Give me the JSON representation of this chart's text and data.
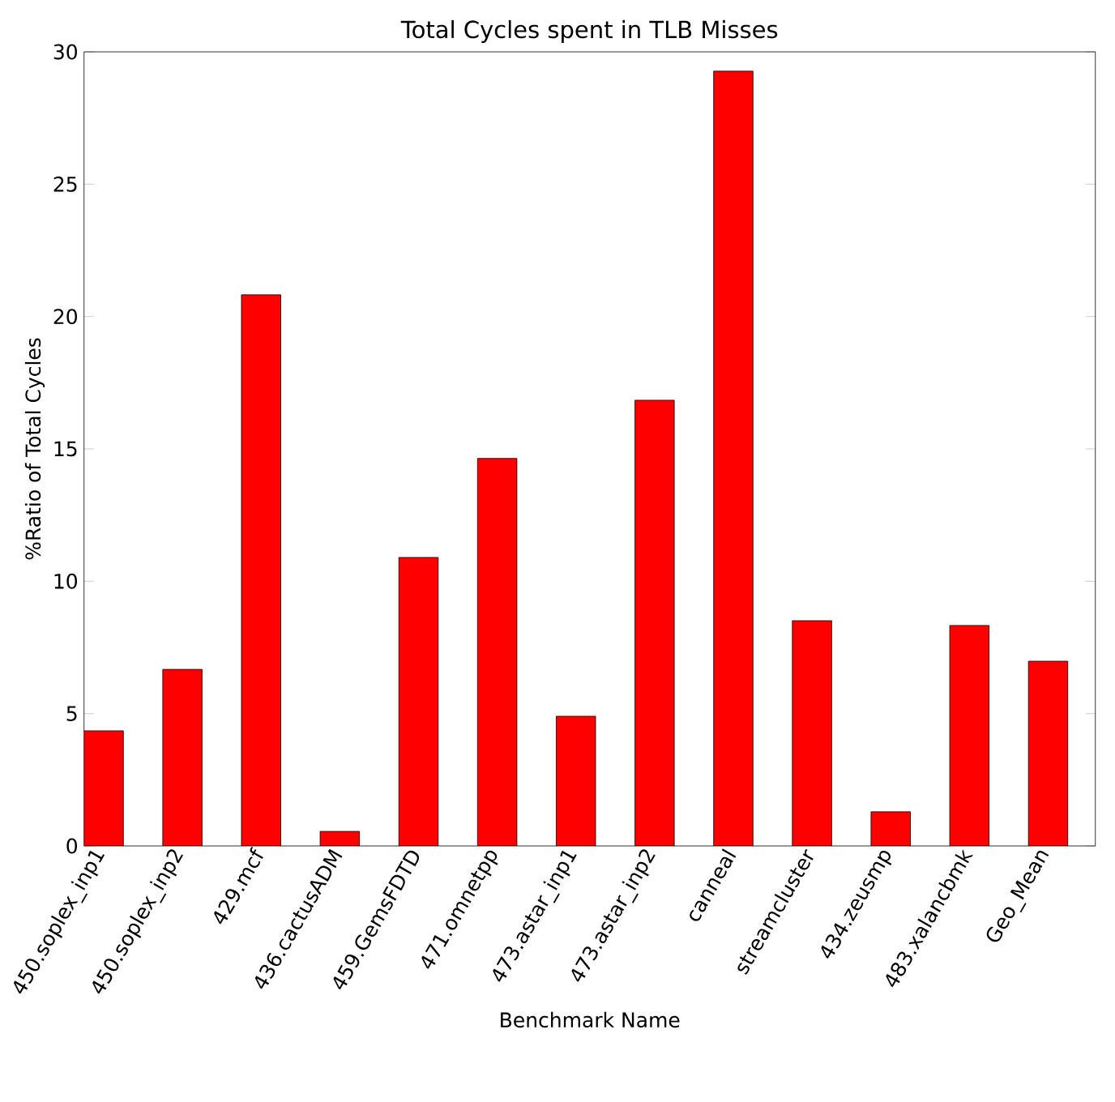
{
  "chart_data": {
    "type": "bar",
    "title": "Total Cycles spent in TLB Misses",
    "xlabel": "Benchmark Name",
    "ylabel": "%Ratio of Total Cycles",
    "categories": [
      "450.soplex_inp1",
      "450.soplex_inp2",
      "429.mcf",
      "436.cactusADM",
      "459.GemsFDTD",
      "471.omnetpp",
      "473.astar_inp1",
      "473.astar_inp2",
      "canneal",
      "streamcluster",
      "434.zeusmp",
      "483.xalancbmk",
      "Geo_Mean"
    ],
    "values": [
      4.35,
      6.67,
      20.82,
      0.55,
      10.9,
      14.64,
      4.9,
      16.84,
      29.27,
      8.51,
      1.29,
      8.33,
      6.98
    ],
    "color": "#ff0000",
    "ylim": [
      0,
      30
    ],
    "yticks": [
      0,
      5,
      10,
      15,
      20,
      25,
      30
    ]
  }
}
